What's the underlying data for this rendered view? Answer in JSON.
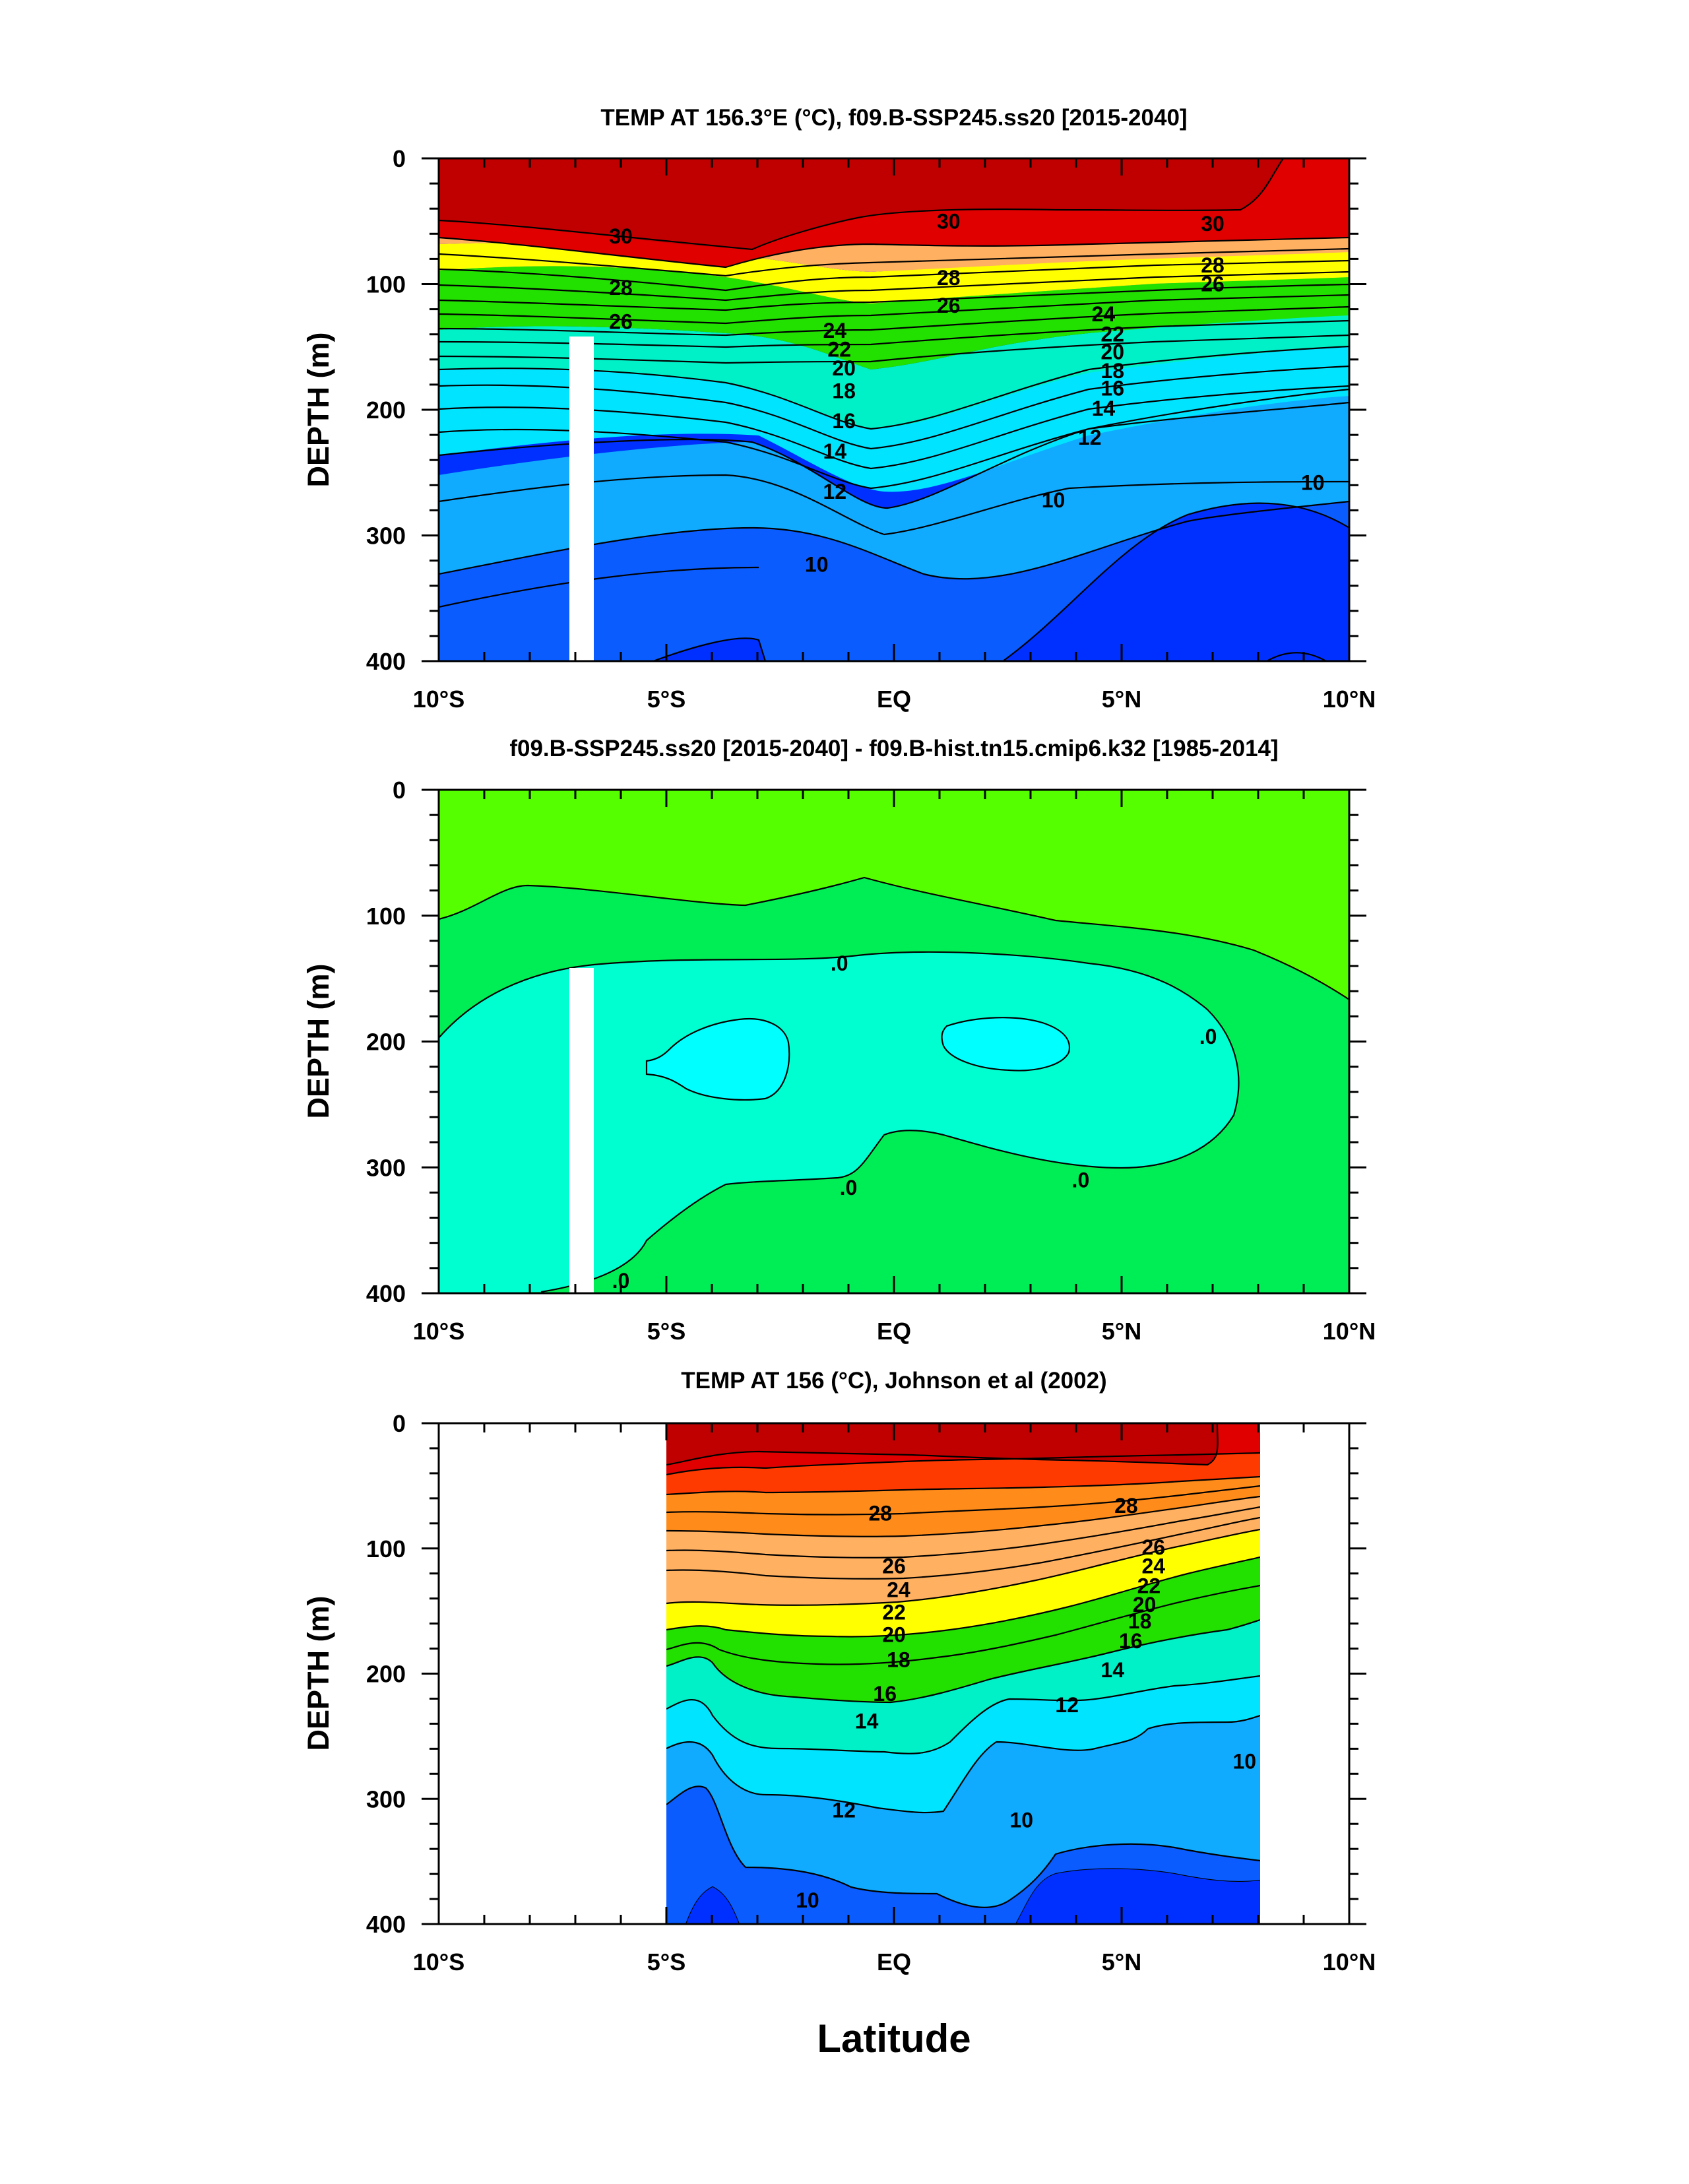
{
  "xlabel": "Latitude",
  "colors": {
    "dark_red": "#c00000",
    "red": "#e00000",
    "red_orange": "#ff3a00",
    "orange": "#ff8c1a",
    "light_orange": "#ffb060",
    "yellow": "#ffff00",
    "green": "#22e000",
    "aqua": "#00f0c8",
    "cyan": "#00e4ff",
    "light_blue": "#10aaff",
    "blue": "#0a5cff",
    "deep_blue": "#0030ff",
    "panel2_green_light": "#55ff00",
    "panel2_green": "#00ee55",
    "panel2_aqua": "#00ffd0",
    "panel2_cyan": "#00ffff"
  },
  "chart_data": [
    {
      "type": "contour",
      "title": "TEMP AT 156.3°E (°C), f09.B-SSP245.ss20 [2015-2040]",
      "ylabel": "DEPTH (m)",
      "x_ticks": [
        "10°S",
        "5°S",
        "EQ",
        "5°N",
        "10°N"
      ],
      "y_ticks": [
        "0",
        "100",
        "200",
        "300",
        "400"
      ],
      "xlim": [
        -10,
        10
      ],
      "ylim": [
        400,
        0
      ],
      "contour_labels": [
        {
          "text": "30",
          "x": -6.0,
          "y": 62
        },
        {
          "text": "30",
          "x": 1.2,
          "y": 50
        },
        {
          "text": "30",
          "x": 7.0,
          "y": 52
        },
        {
          "text": "28",
          "x": -6.0,
          "y": 103
        },
        {
          "text": "28",
          "x": 1.2,
          "y": 95
        },
        {
          "text": "28",
          "x": 7.0,
          "y": 85
        },
        {
          "text": "26",
          "x": -6.0,
          "y": 130
        },
        {
          "text": "26",
          "x": 1.2,
          "y": 117
        },
        {
          "text": "26",
          "x": 7.0,
          "y": 100
        },
        {
          "text": "24",
          "x": -1.3,
          "y": 137
        },
        {
          "text": "22",
          "x": -1.2,
          "y": 152
        },
        {
          "text": "20",
          "x": -1.1,
          "y": 167
        },
        {
          "text": "18",
          "x": -1.1,
          "y": 185
        },
        {
          "text": "16",
          "x": -1.1,
          "y": 209
        },
        {
          "text": "14",
          "x": -1.3,
          "y": 233
        },
        {
          "text": "12",
          "x": -1.3,
          "y": 265
        },
        {
          "text": "10",
          "x": -1.7,
          "y": 323
        },
        {
          "text": "24",
          "x": 4.6,
          "y": 124
        },
        {
          "text": "22",
          "x": 4.8,
          "y": 140
        },
        {
          "text": "20",
          "x": 4.8,
          "y": 154
        },
        {
          "text": "18",
          "x": 4.8,
          "y": 169
        },
        {
          "text": "16",
          "x": 4.8,
          "y": 183
        },
        {
          "text": "14",
          "x": 4.6,
          "y": 199
        },
        {
          "text": "12",
          "x": 4.3,
          "y": 222
        },
        {
          "text": "10",
          "x": 3.5,
          "y": 272
        },
        {
          "text": "10",
          "x": 9.2,
          "y": 258
        }
      ]
    },
    {
      "type": "contour",
      "title": "f09.B-SSP245.ss20 [2015-2040] - f09.B-hist.tn15.cmip6.k32 [1985-2014]",
      "ylabel": "DEPTH (m)",
      "x_ticks": [
        "10°S",
        "5°S",
        "EQ",
        "5°N",
        "10°N"
      ],
      "y_ticks": [
        "0",
        "100",
        "200",
        "300",
        "400"
      ],
      "xlim": [
        -10,
        10
      ],
      "ylim": [
        400,
        0
      ],
      "contour_labels": [
        {
          "text": ".0",
          "x": -1.2,
          "y": 138
        },
        {
          "text": ".0",
          "x": 6.9,
          "y": 196
        },
        {
          "text": ".0",
          "x": -1.0,
          "y": 316
        },
        {
          "text": ".0",
          "x": 4.1,
          "y": 310
        },
        {
          "text": ".0",
          "x": -6.0,
          "y": 390
        }
      ]
    },
    {
      "type": "contour",
      "title": "TEMP AT 156 (°C), Johnson et al (2002)",
      "ylabel": "DEPTH (m)",
      "x_ticks": [
        "10°S",
        "5°S",
        "EQ",
        "5°N",
        "10°N"
      ],
      "y_ticks": [
        "0",
        "100",
        "200",
        "300",
        "400"
      ],
      "xlim": [
        -10,
        10
      ],
      "ylim": [
        400,
        0
      ],
      "contour_labels": [
        {
          "text": "28",
          "x": -0.3,
          "y": 72
        },
        {
          "text": "28",
          "x": 5.1,
          "y": 66
        },
        {
          "text": "26",
          "x": 0.0,
          "y": 114
        },
        {
          "text": "24",
          "x": 0.1,
          "y": 133
        },
        {
          "text": "22",
          "x": 0.0,
          "y": 151
        },
        {
          "text": "20",
          "x": 0.0,
          "y": 169
        },
        {
          "text": "18",
          "x": 0.1,
          "y": 189
        },
        {
          "text": "16",
          "x": -0.2,
          "y": 216
        },
        {
          "text": "14",
          "x": -0.6,
          "y": 238
        },
        {
          "text": "12",
          "x": -1.1,
          "y": 309
        },
        {
          "text": "10",
          "x": -1.9,
          "y": 381
        },
        {
          "text": "26",
          "x": 5.7,
          "y": 99
        },
        {
          "text": "24",
          "x": 5.7,
          "y": 114
        },
        {
          "text": "22",
          "x": 5.6,
          "y": 130
        },
        {
          "text": "20",
          "x": 5.5,
          "y": 145
        },
        {
          "text": "18",
          "x": 5.4,
          "y": 158
        },
        {
          "text": "16",
          "x": 5.2,
          "y": 174
        },
        {
          "text": "14",
          "x": 4.8,
          "y": 197
        },
        {
          "text": "12",
          "x": 3.8,
          "y": 225
        },
        {
          "text": "10",
          "x": 2.8,
          "y": 317
        },
        {
          "text": "10",
          "x": 7.7,
          "y": 270
        }
      ]
    }
  ]
}
